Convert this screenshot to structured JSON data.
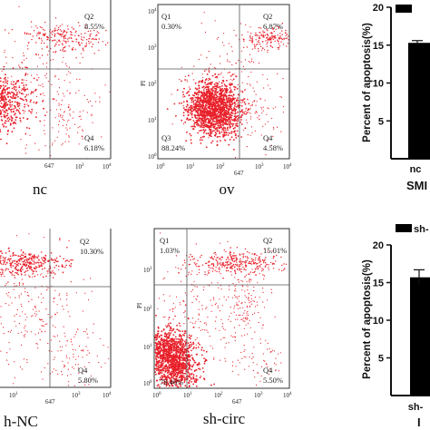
{
  "panels": [
    {
      "id": "nc",
      "caption": "nc",
      "quadrants": {
        "q1": {
          "label": "",
          "value": ""
        },
        "q2": {
          "label": "Q2",
          "value": "8.55%"
        },
        "q3": {
          "label": "",
          "value": ""
        },
        "q4": {
          "label": "Q4",
          "value": "6.18%"
        }
      },
      "x_ticks": [
        "647",
        "10^3",
        "10^4"
      ],
      "y_ticks": [],
      "y_label": ""
    },
    {
      "id": "ov",
      "caption": "ov",
      "quadrants": {
        "q1": {
          "label": "Q1",
          "value": "0.30%"
        },
        "q2": {
          "label": "Q2",
          "value": "6.87%"
        },
        "q3": {
          "label": "Q3",
          "value": "88.24%"
        },
        "q4": {
          "label": "Q4",
          "value": "4.58%"
        }
      },
      "x_ticks": [
        "10^0",
        "10^1",
        "10^2",
        "647",
        "10^3",
        "10^4"
      ],
      "y_ticks": [
        "10^0",
        "10^1",
        "10^2",
        "10^3",
        "10^4"
      ],
      "y_label": "PI"
    },
    {
      "id": "sh-nc",
      "caption": "h-NC",
      "quadrants": {
        "q1": {
          "label": "",
          "value": ""
        },
        "q2": {
          "label": "Q2",
          "value": "10.30%"
        },
        "q3": {
          "label": "",
          "value": ""
        },
        "q4": {
          "label": "Q4",
          "value": "5.80%"
        }
      },
      "x_ticks": [
        "10^1",
        "647",
        "10^3",
        "10^4"
      ],
      "y_ticks": [],
      "y_label": ""
    },
    {
      "id": "sh-circ",
      "caption": "sh-circ",
      "quadrants": {
        "q1": {
          "label": "Q1",
          "value": "1.03%"
        },
        "q2": {
          "label": "Q2",
          "value": "15.01%"
        },
        "q3": {
          "label": "",
          "value": "78.46%"
        },
        "q4": {
          "label": "Q4",
          "value": "5.50%"
        }
      },
      "x_ticks": [
        "10^0",
        "10^1",
        "10^2",
        "647",
        "10^3",
        "10^4"
      ],
      "y_ticks": [
        "10^0",
        "10^1",
        "10^2",
        "10^3"
      ],
      "y_label": "PI"
    }
  ],
  "chart_data": [
    {
      "type": "bar",
      "categories": [
        "nc"
      ],
      "values": [
        15.3
      ],
      "error": [
        0.3
      ],
      "ylabel": "Percent of apoptosis(%)",
      "yticks": [
        5,
        10,
        15,
        20
      ],
      "ylim": [
        0,
        20
      ],
      "xlabel": "SMI",
      "legend": {
        "label": "",
        "placement": "top"
      },
      "color": "#000000"
    },
    {
      "type": "bar",
      "categories": [
        "sh-"
      ],
      "values": [
        15.7
      ],
      "error": [
        1.0
      ],
      "ylabel": "Percent of apoptosis(%)",
      "yticks": [
        5,
        10,
        15,
        20
      ],
      "ylim": [
        0,
        20
      ],
      "xlabel": "I",
      "legend": {
        "label": "sh-",
        "placement": "top"
      },
      "color": "#000000"
    }
  ],
  "colors": {
    "dots": "#e8202a",
    "axis": "#333333",
    "bar": "#000000"
  }
}
